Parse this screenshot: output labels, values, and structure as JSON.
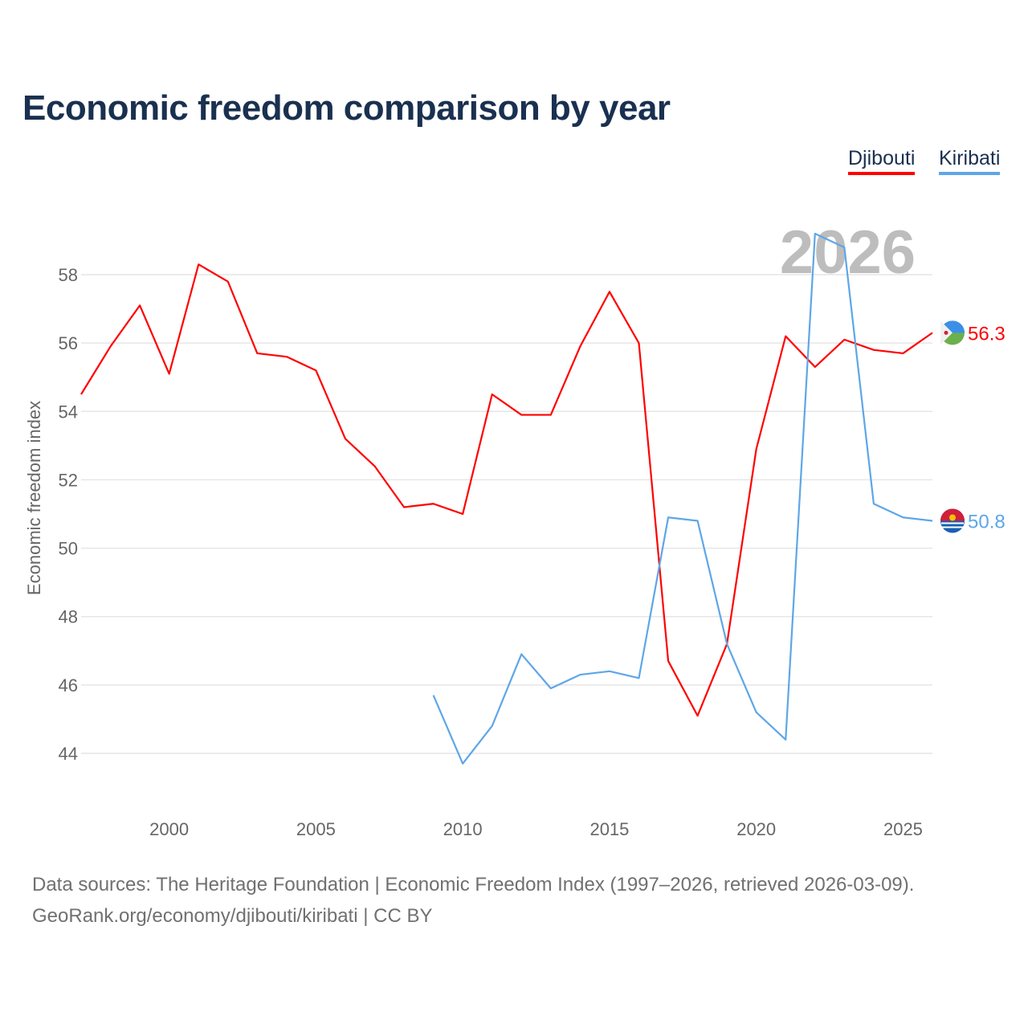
{
  "title": "Economic freedom comparison by year",
  "legend": [
    {
      "label": "Djibouti",
      "color": "#ff0000"
    },
    {
      "label": "Kiribati",
      "color": "#5ea6e8"
    }
  ],
  "footer": {
    "line1": "Data sources: The Heritage Foundation | Economic Freedom Index (1997–2026, retrieved 2026-03-09).",
    "line2": "GeoRank.org/economy/djibouti/kiribati | CC BY"
  },
  "chart_data": {
    "type": "line",
    "title": "Economic freedom comparison by year",
    "xlabel": "",
    "ylabel": "Economic freedom index",
    "year_watermark": "2026",
    "xlim": [
      1997,
      2026
    ],
    "ylim": [
      42.9,
      59.6
    ],
    "xticks": [
      2000,
      2005,
      2010,
      2015,
      2020,
      2025
    ],
    "yticks": [
      44,
      46,
      48,
      50,
      52,
      54,
      56,
      58
    ],
    "grid": true,
    "legend_position": "top-right",
    "series": [
      {
        "name": "Djibouti",
        "color": "#ff0000",
        "end_label": "56.3",
        "x": [
          1997,
          1998,
          1999,
          2000,
          2001,
          2002,
          2003,
          2004,
          2005,
          2006,
          2007,
          2008,
          2009,
          2010,
          2011,
          2012,
          2013,
          2014,
          2015,
          2016,
          2017,
          2018,
          2019,
          2020,
          2021,
          2022,
          2023,
          2024,
          2025,
          2026
        ],
        "y": [
          54.5,
          55.9,
          57.1,
          55.1,
          58.3,
          57.8,
          55.7,
          55.6,
          55.2,
          53.2,
          52.4,
          51.2,
          51.3,
          51.0,
          54.5,
          53.9,
          53.9,
          55.9,
          57.5,
          56.0,
          46.7,
          45.1,
          47.2,
          52.9,
          56.2,
          55.3,
          56.1,
          55.8,
          55.7,
          56.3
        ]
      },
      {
        "name": "Kiribati",
        "color": "#5ea6e8",
        "end_label": "50.8",
        "x": [
          2009,
          2010,
          2011,
          2012,
          2013,
          2014,
          2015,
          2016,
          2017,
          2018,
          2019,
          2020,
          2021,
          2022,
          2023,
          2024,
          2025,
          2026
        ],
        "y": [
          45.7,
          43.7,
          44.8,
          46.9,
          45.9,
          46.3,
          46.4,
          46.2,
          50.9,
          50.8,
          47.2,
          45.2,
          44.4,
          59.2,
          58.8,
          51.3,
          50.9,
          50.8
        ]
      }
    ]
  }
}
